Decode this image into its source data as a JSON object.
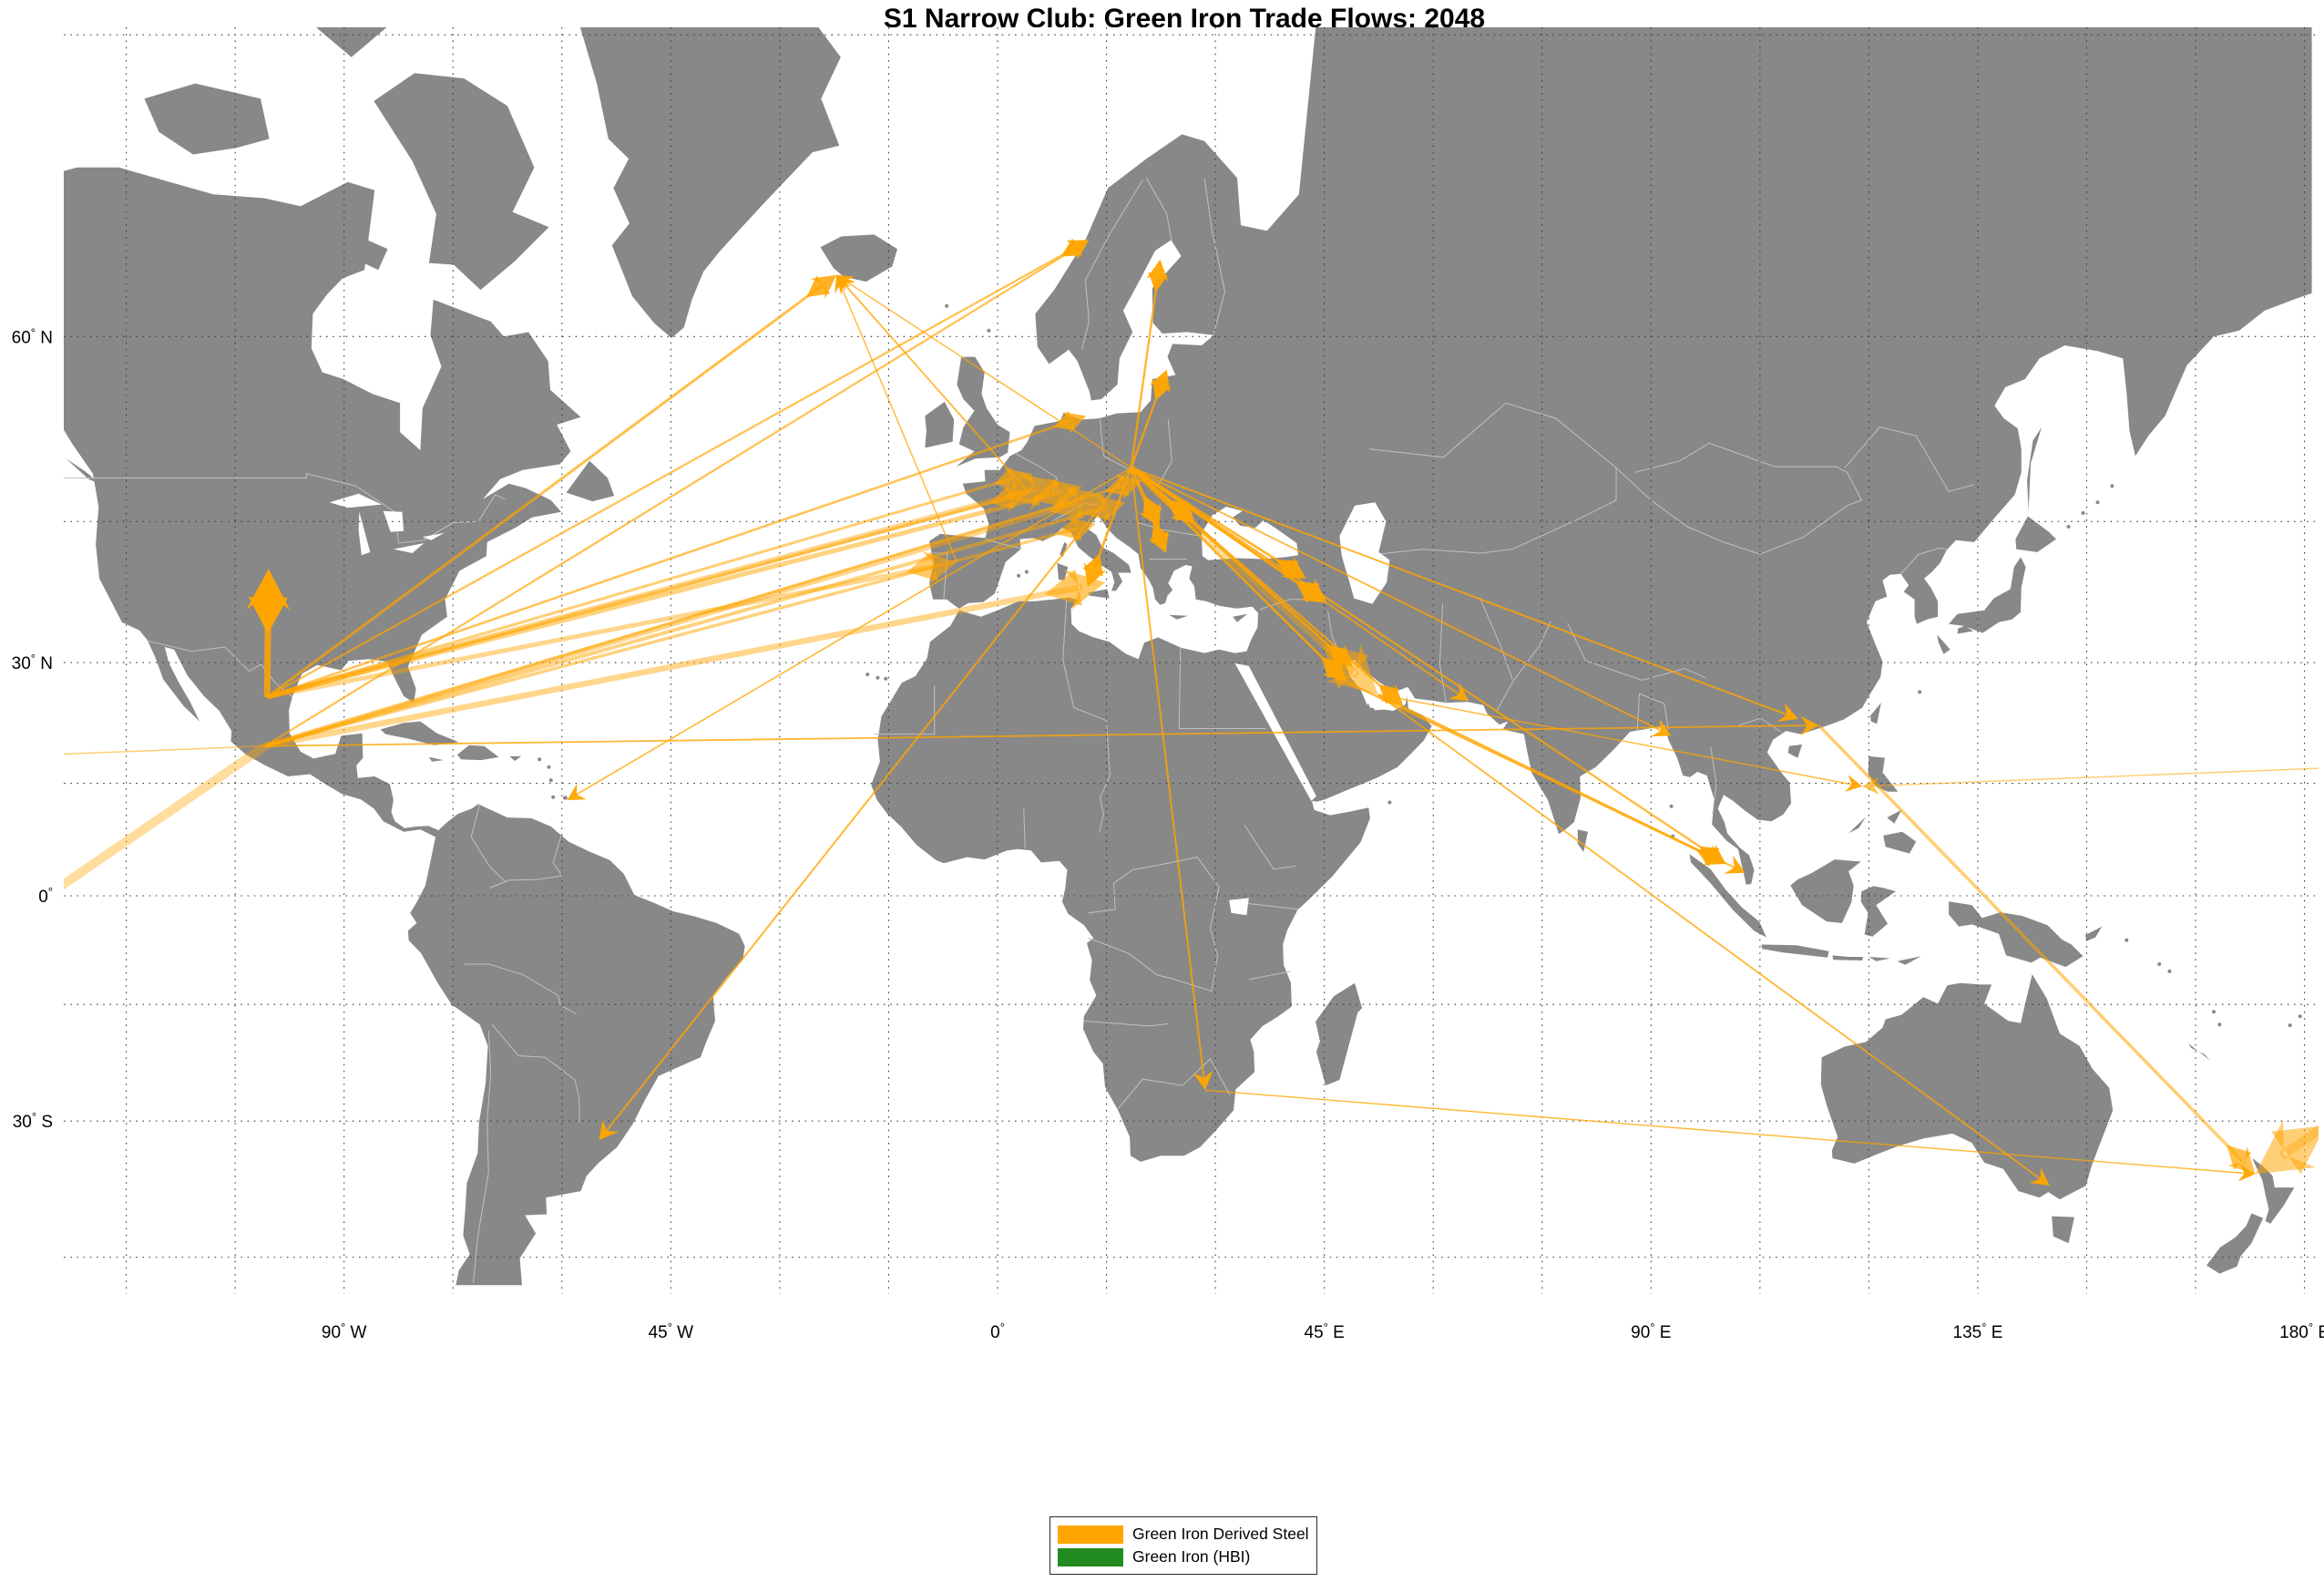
{
  "title": "S1 Narrow Club: Green Iron Trade Flows: 2048",
  "legend": {
    "items": [
      {
        "label": "Green Iron Derived Steel",
        "color": "#FFA500"
      },
      {
        "label": "Green Iron (HBI)",
        "color": "#228B22"
      }
    ]
  },
  "colors": {
    "ocean": "#ffffff",
    "land": "#888888",
    "country_border": "#c0c0c0",
    "graticule": "#3c3c3c",
    "flow": "#FFA500",
    "tick_text": "#000000"
  },
  "axes": {
    "lat_gridlines": [
      75,
      60,
      45,
      30,
      15,
      0,
      -15,
      -30,
      -45
    ],
    "lon_gridlines": [
      -120,
      -105,
      -90,
      -75,
      -60,
      -45,
      -30,
      -15,
      0,
      15,
      30,
      45,
      60,
      75,
      90,
      105,
      120,
      135,
      150,
      165,
      180
    ],
    "lat_ticks": [
      {
        "v": 60,
        "num": "60",
        "hem": "N"
      },
      {
        "v": 30,
        "num": "30",
        "hem": "N"
      },
      {
        "v": 0,
        "num": "0",
        "hem": ""
      },
      {
        "v": -30,
        "num": "30",
        "hem": "S"
      }
    ],
    "lon_ticks": [
      {
        "v": -90,
        "num": "90",
        "hem": "W"
      },
      {
        "v": -45,
        "num": "45",
        "hem": "W"
      },
      {
        "v": 0,
        "num": "0",
        "hem": ""
      },
      {
        "v": 45,
        "num": "45",
        "hem": "E"
      },
      {
        "v": 90,
        "num": "90",
        "hem": "E"
      },
      {
        "v": 135,
        "num": "135",
        "hem": "E"
      },
      {
        "v": 180,
        "num": "180",
        "hem": "E"
      }
    ]
  },
  "flows": {
    "nodes": {
      "mexico_n": [
        -100.6,
        25.9
      ],
      "mexico_s": [
        -100.9,
        19.8
      ],
      "usa": [
        -100.4,
        40.3
      ],
      "europe_hub": [
        18.4,
        49.9
      ],
      "spain": [
        -5.6,
        41.0
      ],
      "france": [
        4.3,
        47.7
      ],
      "belgium": [
        4.4,
        49.4
      ],
      "germany_w": [
        8.6,
        48.6
      ],
      "germany_e": [
        11.6,
        48.2
      ],
      "austria": [
        14.6,
        47.5
      ],
      "hungary": [
        17.6,
        46.8
      ],
      "poland": [
        19.9,
        48.8
      ],
      "italy_n": [
        13.5,
        44.8
      ],
      "sicily": [
        14.8,
        38.9
      ],
      "tunisia": [
        12.4,
        38.4
      ],
      "denmark": [
        12.2,
        54.2
      ],
      "iceland": [
        -22.2,
        63.9
      ],
      "norway": [
        12.6,
        65.9
      ],
      "sweden": [
        22.4,
        64.8
      ],
      "baltics": [
        23.3,
        57.7
      ],
      "romania": [
        27.3,
        44.8
      ],
      "serbia": [
        22.3,
        44.4
      ],
      "greece": [
        23.2,
        41.9
      ],
      "turkey": [
        42.5,
        39.3
      ],
      "iraq": [
        45.4,
        36.7
      ],
      "kuwait": [
        48.9,
        29.5
      ],
      "saudi": [
        48.1,
        27.7
      ],
      "qatar": [
        52.4,
        26.2
      ],
      "uae": [
        55.9,
        24.8
      ],
      "pakistan": [
        64.9,
        25.4
      ],
      "myanmar": [
        92.8,
        21.1
      ],
      "china_s": [
        110.3,
        23.2
      ],
      "china_hk": [
        113.1,
        22.4
      ],
      "malaysia": [
        100.3,
        4.3
      ],
      "singapore": [
        103.0,
        3.1
      ],
      "philippines": [
        119.1,
        14.6
      ],
      "south_africa": [
        28.6,
        -26.2
      ],
      "uruguay": [
        -54.9,
        -32.3
      ],
      "trinidad": [
        -59.3,
        12.8
      ],
      "new_zealand": [
        173.2,
        -36.2
      ],
      "australia": [
        144.9,
        -37.5
      ]
    },
    "list": [
      {
        "from": "mexico_n",
        "to": "usa",
        "width": 7.0,
        "alpha": 0.85
      },
      {
        "from": "mexico_n",
        "to": "iceland",
        "width": 3.0,
        "alpha": 0.7
      },
      {
        "from": "mexico_n",
        "to": "norway",
        "width": 2.2,
        "alpha": 0.7
      },
      {
        "from": "mexico_s",
        "to": "norway",
        "width": 2.2,
        "alpha": 0.7
      },
      {
        "from": "mexico_n",
        "to": "spain",
        "width": 5.0,
        "alpha": 0.45
      },
      {
        "from": "mexico_n",
        "to": "france",
        "width": 3.5,
        "alpha": 0.5
      },
      {
        "from": "mexico_n",
        "to": "belgium",
        "width": 3.0,
        "alpha": 0.55
      },
      {
        "from": "mexico_n",
        "to": "germany_w",
        "width": 6.0,
        "alpha": 0.45
      },
      {
        "from": "mexico_n",
        "to": "germany_e",
        "width": 5.0,
        "alpha": 0.5
      },
      {
        "from": "mexico_n",
        "to": "denmark",
        "width": 2.6,
        "alpha": 0.65
      },
      {
        "from": "mexico_s",
        "to": "austria",
        "width": 6.0,
        "alpha": 0.45
      },
      {
        "from": "mexico_s",
        "to": "hungary",
        "width": 4.0,
        "alpha": 0.5
      },
      {
        "from": "mexico_s",
        "to": "poland",
        "width": 3.2,
        "alpha": 0.55
      },
      {
        "from": "mexico_s",
        "to": "italy_n",
        "width": 3.5,
        "alpha": 0.5
      },
      {
        "from": "mexico_s",
        "to": "sicily",
        "width": 6.5,
        "alpha": 0.45
      },
      {
        "from": "mexico_s",
        "to": "china_hk",
        "width": 1.8,
        "alpha": 0.8
      },
      {
        "from": "mexico_s",
        "to": "new_zealand",
        "width": 10.0,
        "alpha": 0.38,
        "wrap": true
      },
      {
        "from": "mexico_s",
        "to": "philippines",
        "width": 1.5,
        "alpha": 0.55,
        "wrap": true
      },
      {
        "from": "europe_hub",
        "to": "sweden",
        "width": 2.4,
        "alpha": 0.8
      },
      {
        "from": "europe_hub",
        "to": "baltics",
        "width": 2.4,
        "alpha": 0.8
      },
      {
        "from": "europe_hub",
        "to": "romania",
        "width": 3.0,
        "alpha": 0.8
      },
      {
        "from": "europe_hub",
        "to": "serbia",
        "width": 2.8,
        "alpha": 0.8
      },
      {
        "from": "europe_hub",
        "to": "greece",
        "width": 2.4,
        "alpha": 0.8
      },
      {
        "from": "europe_hub",
        "to": "tunisia",
        "width": 2.8,
        "alpha": 0.8
      },
      {
        "from": "europe_hub",
        "to": "turkey",
        "width": 2.8,
        "alpha": 0.8
      },
      {
        "from": "europe_hub",
        "to": "iraq",
        "width": 3.2,
        "alpha": 0.8
      },
      {
        "from": "europe_hub",
        "to": "kuwait",
        "width": 2.4,
        "alpha": 0.8
      },
      {
        "from": "europe_hub",
        "to": "saudi",
        "width": 2.8,
        "alpha": 0.8
      },
      {
        "from": "europe_hub",
        "to": "qatar",
        "width": 8.5,
        "alpha": 0.4
      },
      {
        "from": "europe_hub",
        "to": "uae",
        "width": 2.4,
        "alpha": 0.8
      },
      {
        "from": "europe_hub",
        "to": "pakistan",
        "width": 1.8,
        "alpha": 0.8
      },
      {
        "from": "europe_hub",
        "to": "myanmar",
        "width": 1.8,
        "alpha": 0.8
      },
      {
        "from": "europe_hub",
        "to": "china_s",
        "width": 2.0,
        "alpha": 0.8
      },
      {
        "from": "europe_hub",
        "to": "malaysia",
        "width": 2.2,
        "alpha": 0.8
      },
      {
        "from": "europe_hub",
        "to": "south_africa",
        "width": 2.0,
        "alpha": 0.8
      },
      {
        "from": "europe_hub",
        "to": "uruguay",
        "width": 2.0,
        "alpha": 0.8
      },
      {
        "from": "europe_hub",
        "to": "trinidad",
        "width": 1.6,
        "alpha": 0.8
      },
      {
        "from": "europe_hub",
        "to": "iceland",
        "width": 1.4,
        "alpha": 0.8
      },
      {
        "from": "france",
        "to": "iceland",
        "width": 1.8,
        "alpha": 0.8
      },
      {
        "from": "spain",
        "to": "iceland",
        "width": 1.4,
        "alpha": 0.8
      },
      {
        "from": "saudi",
        "to": "malaysia",
        "width": 2.4,
        "alpha": 0.8
      },
      {
        "from": "qatar",
        "to": "singapore",
        "width": 2.0,
        "alpha": 0.8
      },
      {
        "from": "qatar",
        "to": "philippines",
        "width": 1.4,
        "alpha": 0.8
      },
      {
        "from": "qatar",
        "to": "australia",
        "width": 1.8,
        "alpha": 0.8
      },
      {
        "from": "china_hk",
        "to": "new_zealand",
        "width": 3.5,
        "alpha": 0.55
      },
      {
        "from": "south_africa",
        "to": "new_zealand",
        "width": 1.4,
        "alpha": 0.8
      }
    ]
  }
}
